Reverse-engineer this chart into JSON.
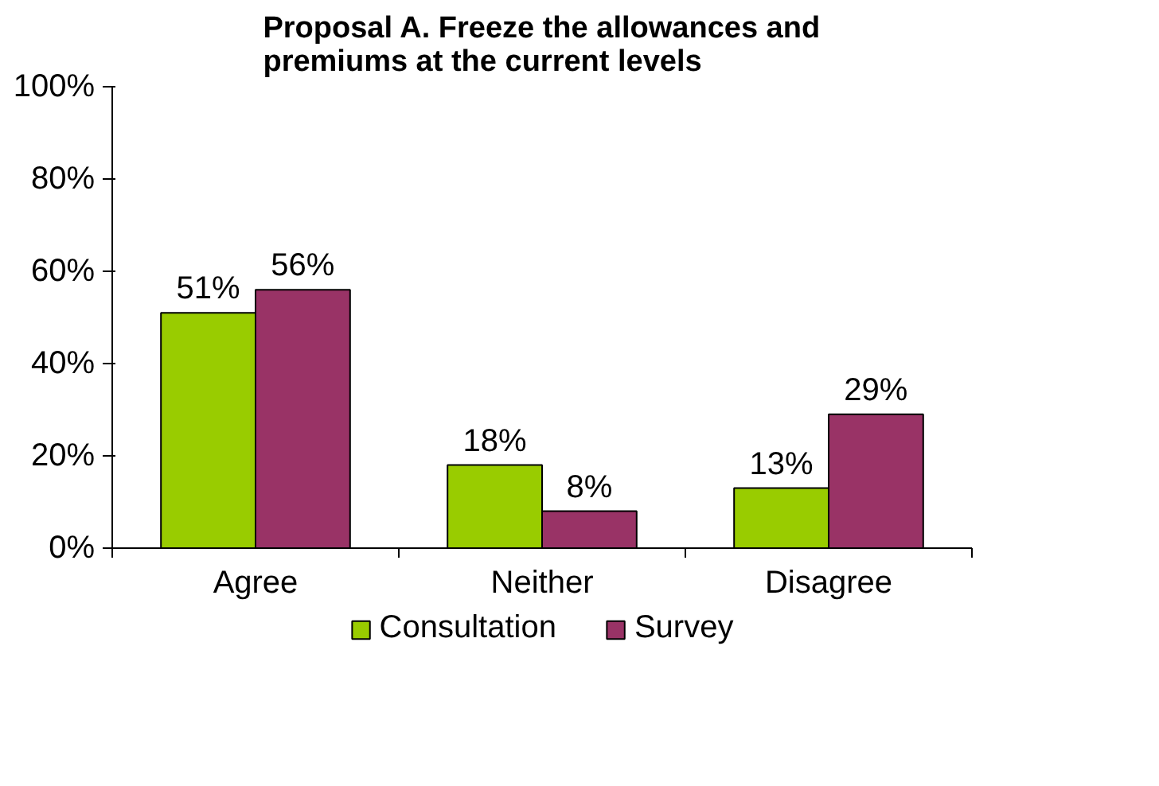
{
  "chart_data": {
    "type": "bar",
    "title": "Proposal A. Freeze the allowances and premiums at the current levels",
    "categories": [
      "Agree",
      "Neither",
      "Disagree"
    ],
    "series": [
      {
        "name": "Consultation",
        "color": "#99cc00",
        "values": [
          51,
          18,
          13
        ],
        "value_labels": [
          "51%",
          "18%",
          "13%"
        ]
      },
      {
        "name": "Survey",
        "color": "#993366",
        "values": [
          56,
          8,
          29
        ],
        "value_labels": [
          "56%",
          "8%",
          "29%"
        ]
      }
    ],
    "ylim": [
      0,
      100
    ],
    "yticks": [
      {
        "value": 0,
        "label": "0%"
      },
      {
        "value": 20,
        "label": "20%"
      },
      {
        "value": 40,
        "label": "40%"
      },
      {
        "value": 60,
        "label": "60%"
      },
      {
        "value": 80,
        "label": "80%"
      },
      {
        "value": 100,
        "label": "100%"
      }
    ],
    "grid": false,
    "legend": "bottom"
  }
}
